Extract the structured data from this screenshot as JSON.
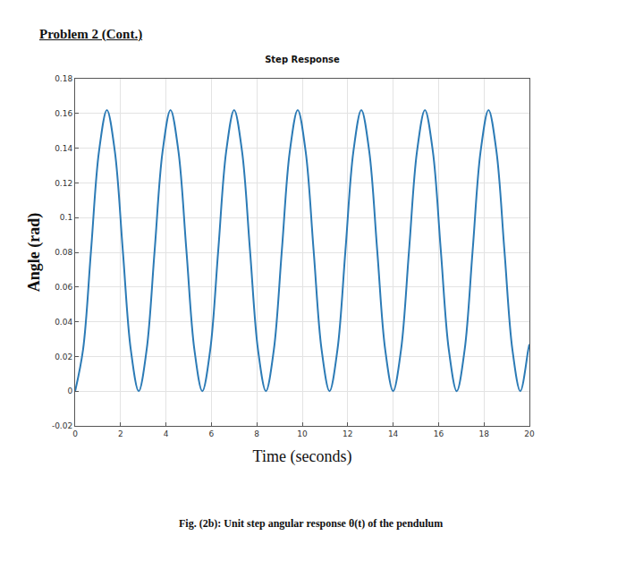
{
  "header": "Problem 2 (Cont.)",
  "caption": "Fig. (2b): Unit step angular response θ(t) of the pendulum",
  "chart_data": {
    "type": "line",
    "title": "Step Response",
    "x_label": "Time (seconds)",
    "y_label": "Angle (rad)",
    "x": [
      0,
      0.35,
      0.7,
      1.05,
      1.4,
      1.75,
      2.1,
      2.45,
      2.8,
      3.15,
      3.5,
      3.85,
      4.2,
      4.55,
      4.9,
      5.25,
      5.6,
      5.95,
      6.3,
      6.65,
      7.0,
      7.35,
      7.7,
      8.05,
      8.4,
      8.75,
      9.1,
      9.45,
      9.8,
      10.15,
      10.5,
      10.85,
      11.2,
      11.55,
      11.9,
      12.25,
      12.6,
      12.95,
      13.3,
      13.65,
      14.0,
      14.35,
      14.7,
      15.05,
      15.4,
      15.75,
      16.1,
      16.45,
      16.8,
      17.15,
      17.5,
      17.85,
      18.2,
      18.55,
      18.9,
      19.25,
      19.6,
      19.95,
      20
    ],
    "values": [
      0,
      0.024,
      0.081,
      0.138,
      0.162,
      0.138,
      0.081,
      0.024,
      0,
      0.024,
      0.081,
      0.138,
      0.162,
      0.138,
      0.081,
      0.024,
      0,
      0.024,
      0.081,
      0.138,
      0.162,
      0.138,
      0.081,
      0.024,
      0,
      0.024,
      0.081,
      0.138,
      0.162,
      0.138,
      0.081,
      0.024,
      0,
      0.024,
      0.081,
      0.138,
      0.162,
      0.138,
      0.081,
      0.024,
      0,
      0.024,
      0.081,
      0.138,
      0.162,
      0.138,
      0.081,
      0.024,
      0,
      0.024,
      0.081,
      0.138,
      0.162,
      0.138,
      0.081,
      0.024,
      0,
      0.024,
      0.027
    ],
    "color": "#2c7bb6",
    "line_style": "solid",
    "xlim": [
      0,
      20
    ],
    "xticks": [
      0,
      2,
      4,
      6,
      8,
      10,
      12,
      14,
      16,
      18,
      20
    ],
    "ylim": [
      -0.02,
      0.18
    ],
    "yticks": [
      -0.02,
      0,
      0.02,
      0.04,
      0.06,
      0.08,
      0.1,
      0.12,
      0.14,
      0.16,
      0.18
    ],
    "grid": true
  }
}
